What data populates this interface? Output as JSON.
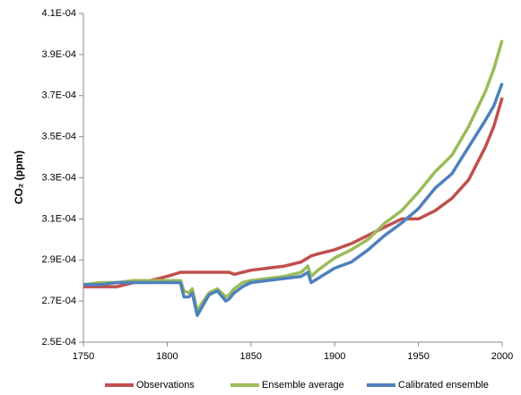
{
  "chart_data": {
    "type": "line",
    "y_label": "CO₂ (ppm)",
    "x": [
      1750,
      1760,
      1770,
      1780,
      1790,
      1800,
      1808,
      1810,
      1813,
      1815,
      1818,
      1820,
      1825,
      1830,
      1835,
      1837,
      1840,
      1845,
      1850,
      1860,
      1870,
      1880,
      1884,
      1886,
      1890,
      1900,
      1910,
      1920,
      1930,
      1940,
      1950,
      1960,
      1970,
      1980,
      1990,
      1995,
      2000
    ],
    "series": [
      {
        "name": "Observations",
        "color": "#c0504d",
        "values": [
          0.000277,
          0.000277,
          0.000277,
          0.000279,
          0.00028,
          0.000282,
          0.000284,
          0.000284,
          0.000284,
          0.000284,
          0.000284,
          0.000284,
          0.000284,
          0.000284,
          0.000284,
          0.000284,
          0.000283,
          0.000284,
          0.000285,
          0.000286,
          0.000287,
          0.000289,
          0.000291,
          0.000292,
          0.000293,
          0.000295,
          0.000298,
          0.000302,
          0.000306,
          0.00031,
          0.00031,
          0.000314,
          0.00032,
          0.000329,
          0.000345,
          0.000355,
          0.000369
        ]
      },
      {
        "name": "Ensemble average",
        "color": "#9bbb59",
        "values": [
          0.000278,
          0.000279,
          0.000279,
          0.00028,
          0.00028,
          0.00028,
          0.00028,
          0.000275,
          0.000274,
          0.000276,
          0.000265,
          0.000268,
          0.000274,
          0.000276,
          0.000272,
          0.000273,
          0.000276,
          0.000279,
          0.00028,
          0.000281,
          0.000282,
          0.000284,
          0.000287,
          0.000282,
          0.000285,
          0.000291,
          0.000295,
          0.0003,
          0.000308,
          0.000314,
          0.000323,
          0.000333,
          0.000341,
          0.000355,
          0.000372,
          0.000383,
          0.000397
        ]
      },
      {
        "name": "Calibrated ensemble",
        "color": "#4f81bd",
        "values": [
          0.000278,
          0.000278,
          0.000279,
          0.000279,
          0.000279,
          0.000279,
          0.000279,
          0.000272,
          0.000272,
          0.000274,
          0.000263,
          0.000266,
          0.000273,
          0.000275,
          0.00027,
          0.000271,
          0.000274,
          0.000277,
          0.000279,
          0.00028,
          0.000281,
          0.000282,
          0.000284,
          0.000279,
          0.000281,
          0.000286,
          0.000289,
          0.000295,
          0.000302,
          0.000308,
          0.000315,
          0.000325,
          0.000332,
          0.000345,
          0.000358,
          0.000365,
          0.000376
        ]
      }
    ],
    "xlim": [
      1750,
      2000
    ],
    "xticks": [
      1750,
      1800,
      1850,
      1900,
      1950,
      2000
    ],
    "ylim": [
      0.00025,
      0.00041
    ],
    "yticks": [
      {
        "value": 0.00025,
        "label": "2.5E-04"
      },
      {
        "value": 0.00027,
        "label": "2.7E-04"
      },
      {
        "value": 0.00029,
        "label": "2.9E-04"
      },
      {
        "value": 0.00031,
        "label": "3.1E-04"
      },
      {
        "value": 0.00033,
        "label": "3.3E-04"
      },
      {
        "value": 0.00035,
        "label": "3.5E-04"
      },
      {
        "value": 0.00037,
        "label": "3.7E-04"
      },
      {
        "value": 0.00039,
        "label": "3.9E-04"
      },
      {
        "value": 0.00041,
        "label": "4.1E-04"
      }
    ],
    "grid": false,
    "legend": "bottom"
  }
}
